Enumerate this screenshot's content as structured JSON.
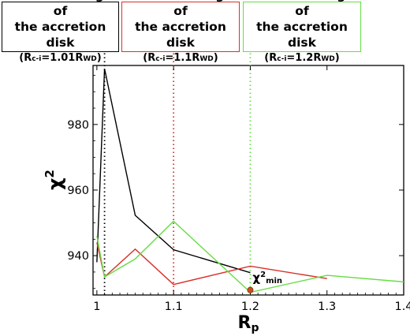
{
  "legend_boxes": [
    {
      "line1": "The inner edge of",
      "line2": "the accretion disk",
      "label_prefix": "(R",
      "label_sub1": "c-i",
      "label_mid": "=1.01R",
      "label_sub2": "WD",
      "label_suffix": ")",
      "border_color": "#000000",
      "line_color": "#000000"
    },
    {
      "line1": "The inner edge of",
      "line2": "the accretion disk",
      "label_prefix": "(R",
      "label_sub1": "c-i",
      "label_mid": "=1.1R",
      "label_sub2": "WD",
      "label_suffix": ")",
      "border_color": "#d8302a",
      "line_color": "#d8302a"
    },
    {
      "line1": "The inner edge of",
      "line2": "the accretion disk",
      "label_prefix": "(R",
      "label_sub1": "c-i",
      "label_mid": "=1.2R",
      "label_sub2": "WD",
      "label_suffix": ")",
      "border_color": "#66dd44",
      "line_color": "#66dd44"
    }
  ],
  "chart_data": {
    "type": "line",
    "xlabel": "R",
    "xlabel_sub": "p",
    "ylabel": "χ",
    "ylabel_sup": "2",
    "xlim": [
      0.995,
      1.4
    ],
    "ylim": [
      928,
      998
    ],
    "xticks": [
      1,
      1.1,
      1.2,
      1.3,
      1.4
    ],
    "xtick_labels": [
      "1",
      "1.1",
      "1.2",
      "1.3",
      "1.4"
    ],
    "yticks": [
      940,
      960,
      980
    ],
    "ytick_labels": [
      "940",
      "960",
      "980"
    ],
    "vlines": [
      {
        "x": 1.01,
        "color": "#000000"
      },
      {
        "x": 1.1,
        "color": "#d8302a"
      },
      {
        "x": 1.2,
        "color": "#66dd44"
      }
    ],
    "series": [
      {
        "color": "#000000",
        "x": [
          1.0,
          1.01,
          1.05,
          1.1,
          1.2
        ],
        "y": [
          938,
          997,
          952.3,
          941.8,
          934.8
        ]
      },
      {
        "color": "#d8302a",
        "x": [
          1.0,
          1.01,
          1.05,
          1.1,
          1.2,
          1.3
        ],
        "y": [
          944,
          933.5,
          942,
          931.2,
          936.8,
          933
        ]
      },
      {
        "color": "#66dd44",
        "x": [
          1.0,
          1.01,
          1.05,
          1.1,
          1.2,
          1.3,
          1.4
        ],
        "y": [
          946,
          933.5,
          939,
          950.5,
          928.8,
          934,
          932
        ]
      }
    ],
    "min_marker": {
      "x": 1.2,
      "y": 929.5,
      "color": "#c8501e",
      "label": "χ",
      "label_sup": "2",
      "label_sub": "min"
    }
  }
}
